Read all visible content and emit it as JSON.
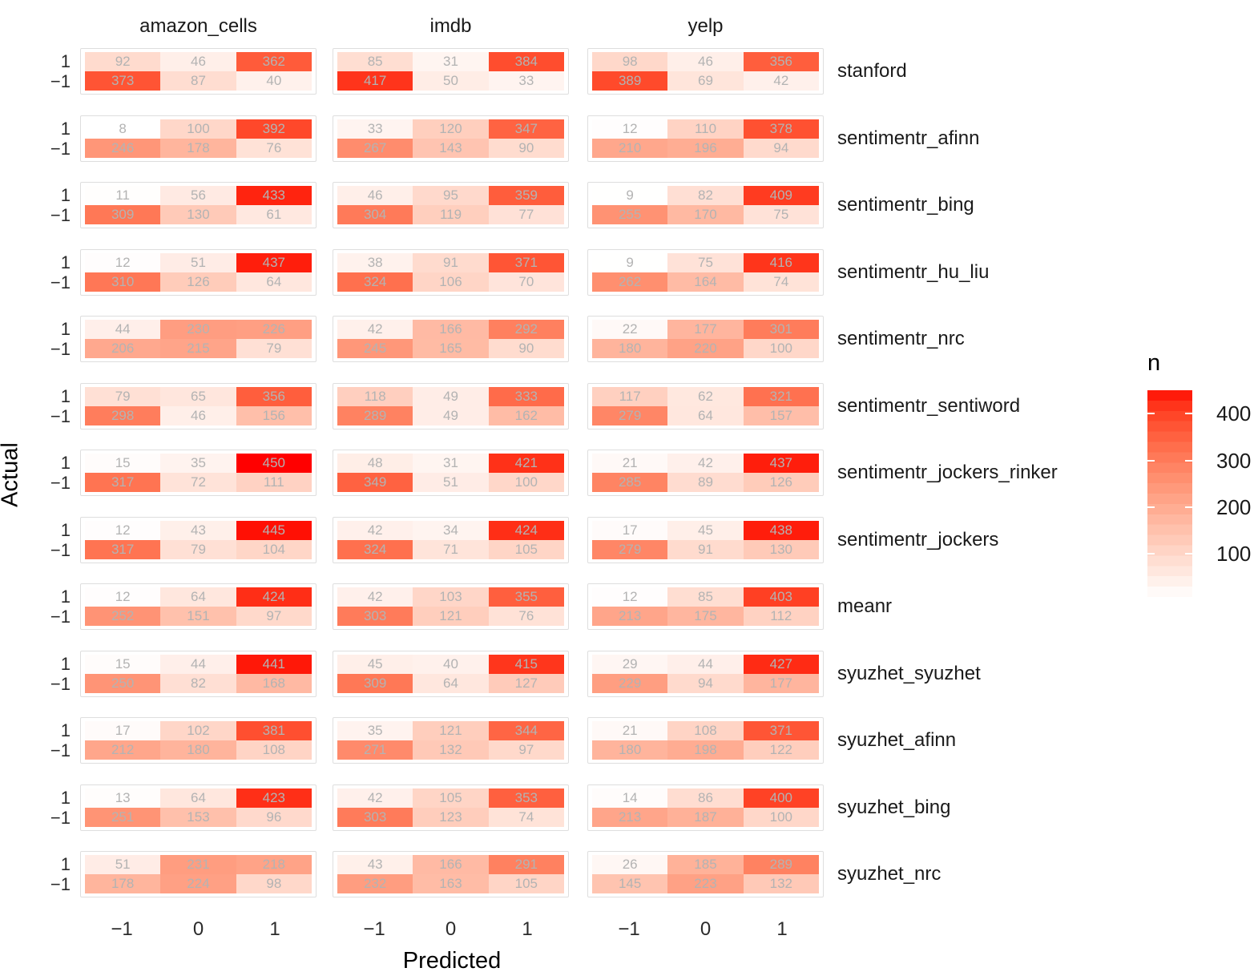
{
  "chart_data": {
    "type": "heatmap",
    "title": "",
    "xlabel": "Predicted",
    "ylabel": "Actual",
    "legend": {
      "title": "n",
      "ticks": [
        400,
        300,
        200,
        100
      ],
      "position": "right"
    },
    "fill_scale": {
      "low": "#FFFFFF",
      "high": "#FF0000",
      "domain": [
        8,
        450
      ]
    },
    "facet_columns": [
      "amazon_cells",
      "imdb",
      "yelp"
    ],
    "facet_rows": [
      "stanford",
      "sentimentr_afinn",
      "sentimentr_bing",
      "sentimentr_hu_liu",
      "sentimentr_nrc",
      "sentimentr_sentiword",
      "sentimentr_jockers_rinker",
      "sentimentr_jockers",
      "meanr",
      "syuzhet_syuzhet",
      "syuzhet_afinn",
      "syuzhet_bing",
      "syuzhet_nrc"
    ],
    "predicted_levels": [
      "−1",
      "0",
      "1"
    ],
    "actual_levels": [
      "1",
      "−1"
    ],
    "grid": "off",
    "values": {
      "stanford": {
        "amazon_cells": [
          [
            92,
            46,
            362
          ],
          [
            373,
            87,
            40
          ]
        ],
        "imdb": [
          [
            85,
            31,
            384
          ],
          [
            417,
            50,
            33
          ]
        ],
        "yelp": [
          [
            98,
            46,
            356
          ],
          [
            389,
            69,
            42
          ]
        ]
      },
      "sentimentr_afinn": {
        "amazon_cells": [
          [
            8,
            100,
            392
          ],
          [
            246,
            178,
            76
          ]
        ],
        "imdb": [
          [
            33,
            120,
            347
          ],
          [
            267,
            143,
            90
          ]
        ],
        "yelp": [
          [
            12,
            110,
            378
          ],
          [
            210,
            196,
            94
          ]
        ]
      },
      "sentimentr_bing": {
        "amazon_cells": [
          [
            11,
            56,
            433
          ],
          [
            309,
            130,
            61
          ]
        ],
        "imdb": [
          [
            46,
            95,
            359
          ],
          [
            304,
            119,
            77
          ]
        ],
        "yelp": [
          [
            9,
            82,
            409
          ],
          [
            255,
            170,
            75
          ]
        ]
      },
      "sentimentr_hu_liu": {
        "amazon_cells": [
          [
            12,
            51,
            437
          ],
          [
            310,
            126,
            64
          ]
        ],
        "imdb": [
          [
            38,
            91,
            371
          ],
          [
            324,
            106,
            70
          ]
        ],
        "yelp": [
          [
            9,
            75,
            416
          ],
          [
            262,
            164,
            74
          ]
        ]
      },
      "sentimentr_nrc": {
        "amazon_cells": [
          [
            44,
            230,
            226
          ],
          [
            206,
            215,
            79
          ]
        ],
        "imdb": [
          [
            42,
            166,
            292
          ],
          [
            245,
            165,
            90
          ]
        ],
        "yelp": [
          [
            22,
            177,
            301
          ],
          [
            180,
            220,
            100
          ]
        ]
      },
      "sentimentr_sentiword": {
        "amazon_cells": [
          [
            79,
            65,
            356
          ],
          [
            298,
            46,
            156
          ]
        ],
        "imdb": [
          [
            118,
            49,
            333
          ],
          [
            289,
            49,
            162
          ]
        ],
        "yelp": [
          [
            117,
            62,
            321
          ],
          [
            279,
            64,
            157
          ]
        ]
      },
      "sentimentr_jockers_rinker": {
        "amazon_cells": [
          [
            15,
            35,
            450
          ],
          [
            317,
            72,
            111
          ]
        ],
        "imdb": [
          [
            48,
            31,
            421
          ],
          [
            349,
            51,
            100
          ]
        ],
        "yelp": [
          [
            21,
            42,
            437
          ],
          [
            285,
            89,
            126
          ]
        ]
      },
      "sentimentr_jockers": {
        "amazon_cells": [
          [
            12,
            43,
            445
          ],
          [
            317,
            79,
            104
          ]
        ],
        "imdb": [
          [
            42,
            34,
            424
          ],
          [
            324,
            71,
            105
          ]
        ],
        "yelp": [
          [
            17,
            45,
            438
          ],
          [
            279,
            91,
            130
          ]
        ]
      },
      "meanr": {
        "amazon_cells": [
          [
            12,
            64,
            424
          ],
          [
            252,
            151,
            97
          ]
        ],
        "imdb": [
          [
            42,
            103,
            355
          ],
          [
            303,
            121,
            76
          ]
        ],
        "yelp": [
          [
            12,
            85,
            403
          ],
          [
            213,
            175,
            112
          ]
        ]
      },
      "syuzhet_syuzhet": {
        "amazon_cells": [
          [
            15,
            44,
            441
          ],
          [
            250,
            82,
            168
          ]
        ],
        "imdb": [
          [
            45,
            40,
            415
          ],
          [
            309,
            64,
            127
          ]
        ],
        "yelp": [
          [
            29,
            44,
            427
          ],
          [
            229,
            94,
            177
          ]
        ]
      },
      "syuzhet_afinn": {
        "amazon_cells": [
          [
            17,
            102,
            381
          ],
          [
            212,
            180,
            108
          ]
        ],
        "imdb": [
          [
            35,
            121,
            344
          ],
          [
            271,
            132,
            97
          ]
        ],
        "yelp": [
          [
            21,
            108,
            371
          ],
          [
            180,
            198,
            122
          ]
        ]
      },
      "syuzhet_bing": {
        "amazon_cells": [
          [
            13,
            64,
            423
          ],
          [
            251,
            153,
            96
          ]
        ],
        "imdb": [
          [
            42,
            105,
            353
          ],
          [
            303,
            123,
            74
          ]
        ],
        "yelp": [
          [
            14,
            86,
            400
          ],
          [
            213,
            187,
            100
          ]
        ]
      },
      "syuzhet_nrc": {
        "amazon_cells": [
          [
            51,
            231,
            218
          ],
          [
            178,
            224,
            98
          ]
        ],
        "imdb": [
          [
            43,
            166,
            291
          ],
          [
            232,
            163,
            105
          ]
        ],
        "yelp": [
          [
            26,
            185,
            289
          ],
          [
            145,
            223,
            132
          ]
        ]
      }
    }
  }
}
